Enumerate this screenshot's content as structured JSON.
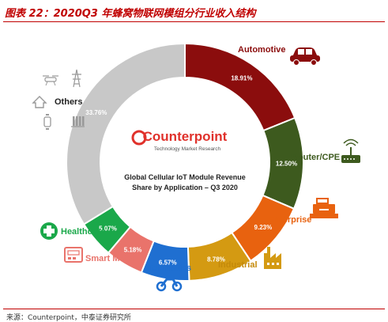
{
  "figure_title": "图表 22：2020Q3 年蜂窝物联网模组分行业收入结构",
  "source": "来源：Counterpoint，中泰证券研究所",
  "chart_data": {
    "type": "pie",
    "variant": "donut",
    "title": "Global Cellular IoT Module Revenue Share by Application – Q3 2020",
    "title_lines": [
      "Global Cellular IoT Module Revenue",
      "Share by Application – Q3 2020"
    ],
    "brand": "Counterpoint",
    "brand_tagline": "Technology Market Research",
    "slices": [
      {
        "label": "Automotive",
        "value": 18.91,
        "value_label": "18.91%",
        "color": "#8b0d0d",
        "icon": "car-icon",
        "label_color": "#8b0d0d"
      },
      {
        "label": "Router/CPE",
        "value": 12.5,
        "value_label": "12.50%",
        "color": "#3d5a1e",
        "icon": "router-icon",
        "label_color": "#3d5a1e"
      },
      {
        "label": "Enterprise",
        "value": 9.23,
        "value_label": "9.23%",
        "color": "#e8620f",
        "icon": "cash-register-icon",
        "label_color": "#e8620f"
      },
      {
        "label": "Industrial",
        "value": 8.78,
        "value_label": "8.78%",
        "color": "#d49a12",
        "icon": "factory-icon",
        "label_color": "#c48a0a"
      },
      {
        "label": "Telematics",
        "value": 6.57,
        "value_label": "6.57%",
        "color": "#1f6fd1",
        "icon": "motorcycle-icon",
        "label_color": "#1f6fd1"
      },
      {
        "label": "Smart Meter",
        "value": 5.18,
        "value_label": "5.18%",
        "color": "#e9736b",
        "icon": "meter-icon",
        "label_color": "#e9736b"
      },
      {
        "label": "Healthcare",
        "value": 5.07,
        "value_label": "5.07%",
        "color": "#1aa84a",
        "icon": "medical-cross-icon",
        "label_color": "#1aa84a"
      },
      {
        "label": "Others",
        "value": 33.76,
        "value_label": "33.76%",
        "color": "#c8c8c8",
        "icon": "drone-tower-home-watch-icons",
        "label_color": "#222222"
      }
    ]
  }
}
